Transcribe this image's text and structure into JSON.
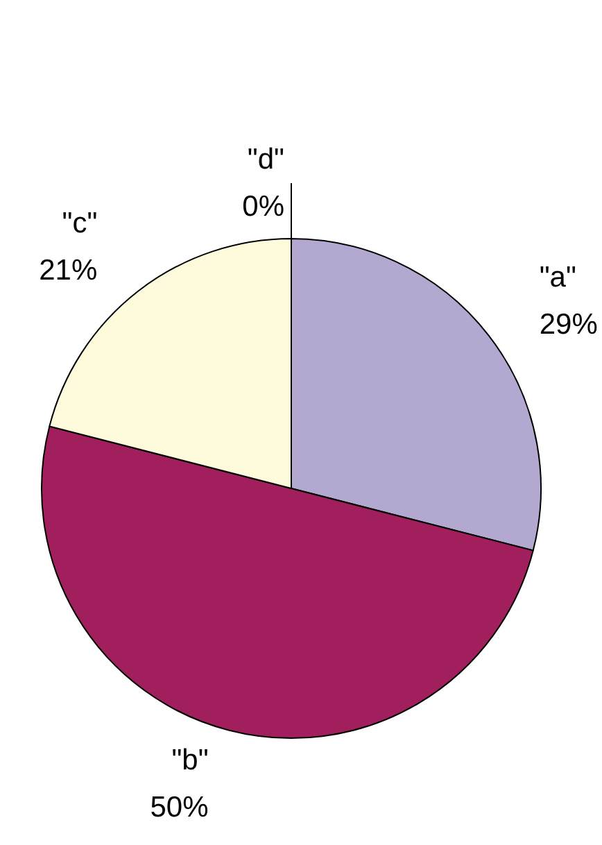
{
  "chart_data": {
    "type": "pie",
    "categories": [
      "\"a\"",
      "\"b\"",
      "\"c\"",
      "\"d\""
    ],
    "values": [
      29,
      50,
      21,
      0
    ],
    "value_labels": [
      "29%",
      "50%",
      "21%",
      "0%"
    ],
    "colors": [
      "#b3a8d0",
      "#a01f5c",
      "#fdfbdb",
      "#c8e6f5"
    ],
    "legend": false
  }
}
